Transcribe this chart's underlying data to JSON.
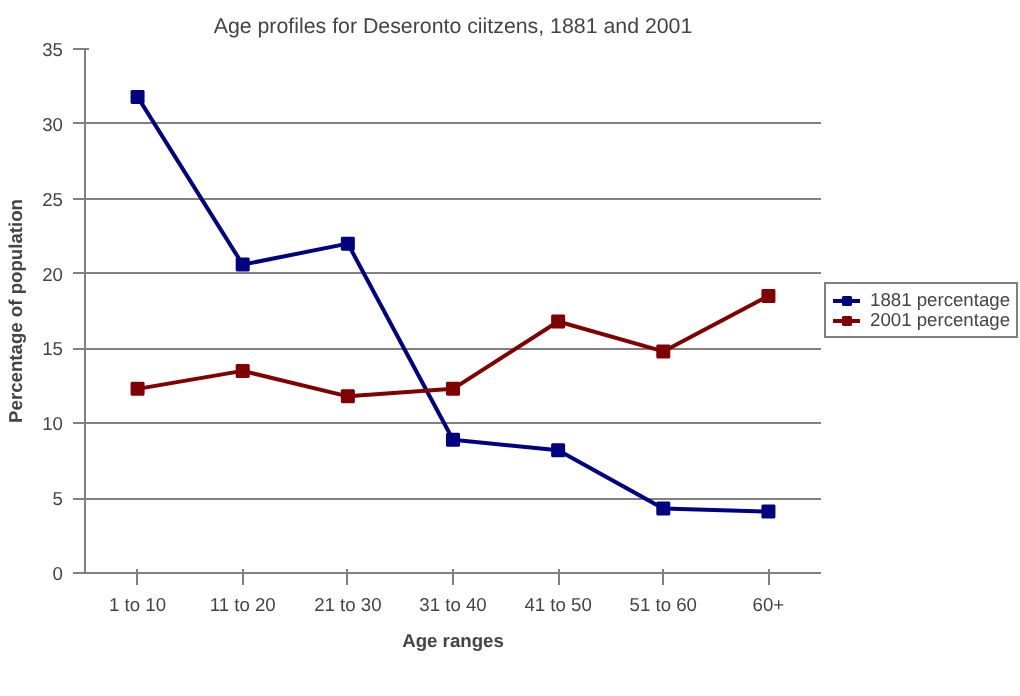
{
  "chart_data": {
    "type": "line",
    "title": "Age profiles for Deseronto ciitzens, 1881 and 2001",
    "xlabel": "Age ranges",
    "ylabel": "Percentage of population",
    "categories": [
      "1 to 10",
      "11 to 20",
      "21 to 30",
      "31 to 40",
      "41 to 50",
      "51 to 60",
      "60+"
    ],
    "series": [
      {
        "name": "1881 percentage",
        "color": "#000080",
        "values": [
          31.8,
          20.6,
          22.0,
          8.9,
          8.2,
          4.3,
          4.1
        ]
      },
      {
        "name": "2001 percentage",
        "color": "#800000",
        "values": [
          12.3,
          13.5,
          11.8,
          12.3,
          16.8,
          14.8,
          18.5
        ]
      }
    ],
    "ylim": [
      0,
      35
    ],
    "yticks": [
      0,
      5,
      10,
      15,
      20,
      25,
      30,
      35
    ],
    "grid": "y",
    "legend": "right",
    "marker": "square",
    "line_style": "solid"
  }
}
